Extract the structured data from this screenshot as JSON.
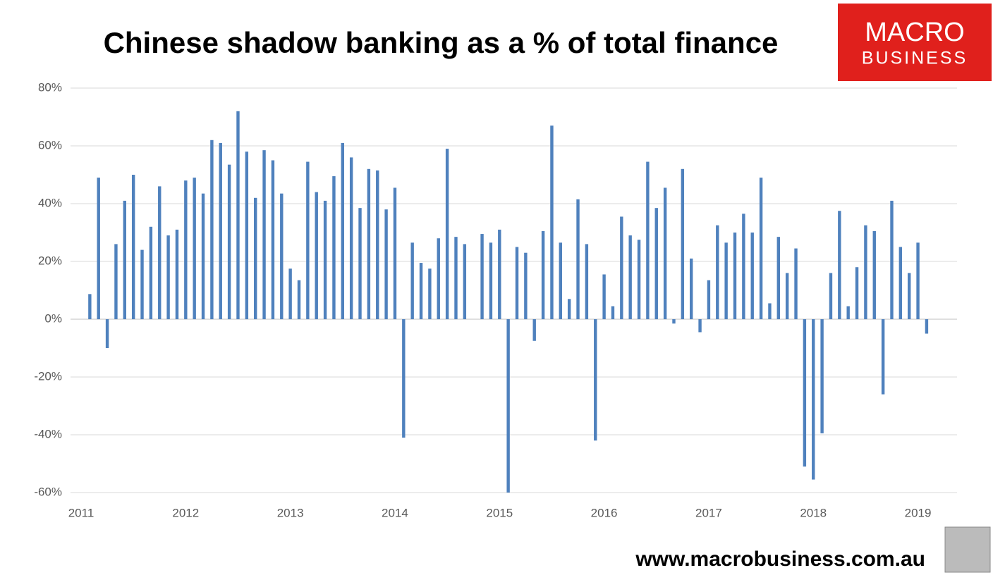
{
  "chart_data": {
    "type": "bar",
    "title": "Chinese shadow banking as a % of total finance",
    "categories": [
      "2011",
      null,
      null,
      null,
      null,
      null,
      null,
      null,
      null,
      null,
      null,
      null,
      "2012",
      null,
      null,
      null,
      null,
      null,
      null,
      null,
      null,
      null,
      null,
      null,
      "2013",
      null,
      null,
      null,
      null,
      null,
      null,
      null,
      null,
      null,
      null,
      null,
      "2014",
      null,
      null,
      null,
      null,
      null,
      null,
      null,
      null,
      null,
      null,
      null,
      "2015",
      null,
      null,
      null,
      null,
      null,
      null,
      null,
      null,
      null,
      null,
      null,
      "2016",
      null,
      null,
      null,
      null,
      null,
      null,
      null,
      null,
      null,
      null,
      null,
      "2017",
      null,
      null,
      null,
      null,
      null,
      null,
      null,
      null,
      null,
      null,
      null,
      "2018",
      null,
      null,
      null,
      null,
      null,
      null,
      null,
      null,
      null,
      null,
      null,
      "2019",
      null
    ],
    "values": [
      null,
      8.7,
      49,
      -10,
      26,
      41,
      50,
      24,
      32,
      46,
      29,
      31,
      48,
      49,
      43.5,
      62,
      61,
      53.5,
      72,
      58,
      42,
      58.5,
      55,
      43.5,
      17.5,
      13.5,
      54.5,
      44,
      41,
      49.5,
      61,
      56,
      38.5,
      52,
      51.5,
      38,
      45.5,
      -41,
      26.5,
      19.5,
      17.5,
      28,
      59,
      28.5,
      26,
      null,
      29.5,
      26.5,
      31,
      -60,
      25,
      23,
      -7.5,
      30.5,
      67,
      26.5,
      7,
      41.5,
      26,
      -42,
      15.5,
      4.5,
      35.5,
      29,
      27.5,
      54.5,
      38.5,
      45.5,
      -1.5,
      52,
      21,
      -4.5,
      13.5,
      32.5,
      26.5,
      30,
      36.5,
      30,
      49,
      5.5,
      28.5,
      16,
      24.5,
      -51,
      -55.5,
      -39.5,
      16,
      37.5,
      4.5,
      18,
      32.5,
      30.5,
      -26,
      41,
      25,
      16,
      26.5,
      -5
    ],
    "color": "#4f81bd",
    "ylim": [
      -60,
      80
    ],
    "yticks": [
      {
        "value": -60,
        "label": "-60%"
      },
      {
        "value": -40,
        "label": "-40%"
      },
      {
        "value": -20,
        "label": "-20%"
      },
      {
        "value": 0,
        "label": "0%"
      },
      {
        "value": 20,
        "label": "20%"
      },
      {
        "value": 40,
        "label": "40%"
      },
      {
        "value": 60,
        "label": "60%"
      },
      {
        "value": 80,
        "label": "80%"
      }
    ],
    "grid": true
  },
  "logo": {
    "line1": "MACRO",
    "line2": "BUSINESS"
  },
  "footer": "www.macrobusiness.com.au"
}
